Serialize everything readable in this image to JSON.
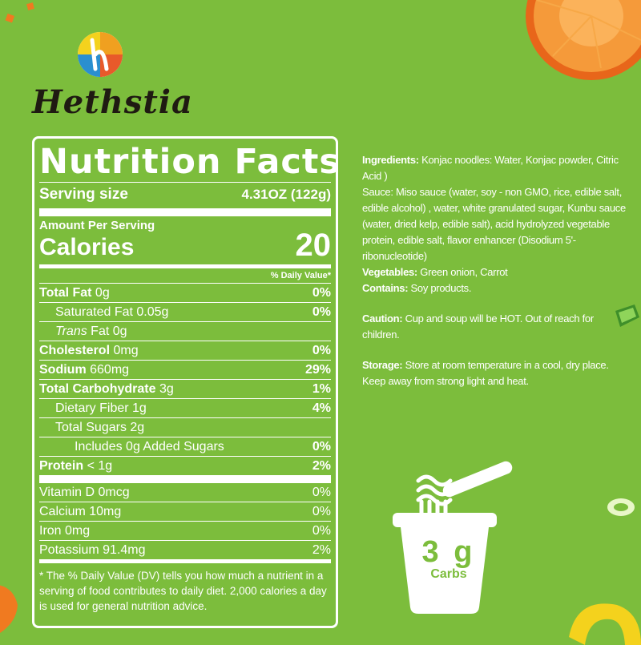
{
  "brand": {
    "name": "Hethstia"
  },
  "label": {
    "title": "Nutrition Facts",
    "serving_size_label": "Serving size",
    "serving_size_value": "4.31OZ (122g)",
    "amount_per_serving": "Amount Per Serving",
    "calories_label": "Calories",
    "calories_value": "20",
    "daily_value_header": "% Daily Value*",
    "rows": [
      {
        "name": "Total Fat",
        "amount": " 0g",
        "dv": "0%"
      },
      {
        "name": "Saturated Fat 0.05g",
        "dv": "0%"
      },
      {
        "name_italic": "Trans",
        "name": " Fat 0g"
      },
      {
        "name": "Cholesterol",
        "amount": " 0mg",
        "dv": "0%"
      },
      {
        "name": "Sodium",
        "amount": " 660mg",
        "dv": "29%"
      },
      {
        "name": "Total Carbohydrate",
        "amount": " 3g",
        "dv": "1%"
      },
      {
        "name": "Dietary Fiber 1g",
        "dv": "4%"
      },
      {
        "name": "Total Sugars 2g"
      },
      {
        "name": "Includes 0g Added Sugars",
        "dv": "0%"
      },
      {
        "name": "Protein",
        "amount": " < 1g",
        "dv": "2%"
      },
      {
        "name": "Vitamin D 0mcg",
        "dv": "0%"
      },
      {
        "name": "Calcium 10mg",
        "dv": "0%"
      },
      {
        "name": "Iron 0mg",
        "dv": "0%"
      },
      {
        "name": "Potassium 91.4mg",
        "dv": "2%"
      }
    ],
    "footnote": "* The % Daily Value (DV) tells you how much a nutrient in a serving of food contributes to  daily diet. 2,000 calories a day is used for general nutrition advice."
  },
  "info": {
    "ingredients_label": "Ingredients:",
    "ingredients_text": " Konjac noodles: Water, Konjac powder, Citric Acid )",
    "sauce_text": "Sauce: Miso sauce (water, soy - non GMO, rice, edible salt, edible alcohol) , water, white granulated sugar, Kunbu sauce (water, dried kelp, edible salt), acid hydrolyzed vegetable protein, edible salt, flavor enhancer (Disodium 5'- ribonucleotide)",
    "vegetables_label": "Vegetables:",
    "vegetables_text": " Green onion, Carrot",
    "contains_label": "Contains:",
    "contains_text": " Soy products.",
    "caution_label": "Caution:",
    "caution_text": "  Cup and soup will be HOT. Out of reach for children.",
    "storage_label": "Storage:",
    "storage_text": " Store at room temperature in a cool, dry place. Keep away from strong light and heat."
  },
  "cup": {
    "amount": "3 g",
    "label": "Carbs"
  },
  "colors": {
    "background": "#7cbd3c",
    "text": "#ffffff",
    "brand_text": "#1f1a12",
    "carrot": "#f07a20"
  }
}
